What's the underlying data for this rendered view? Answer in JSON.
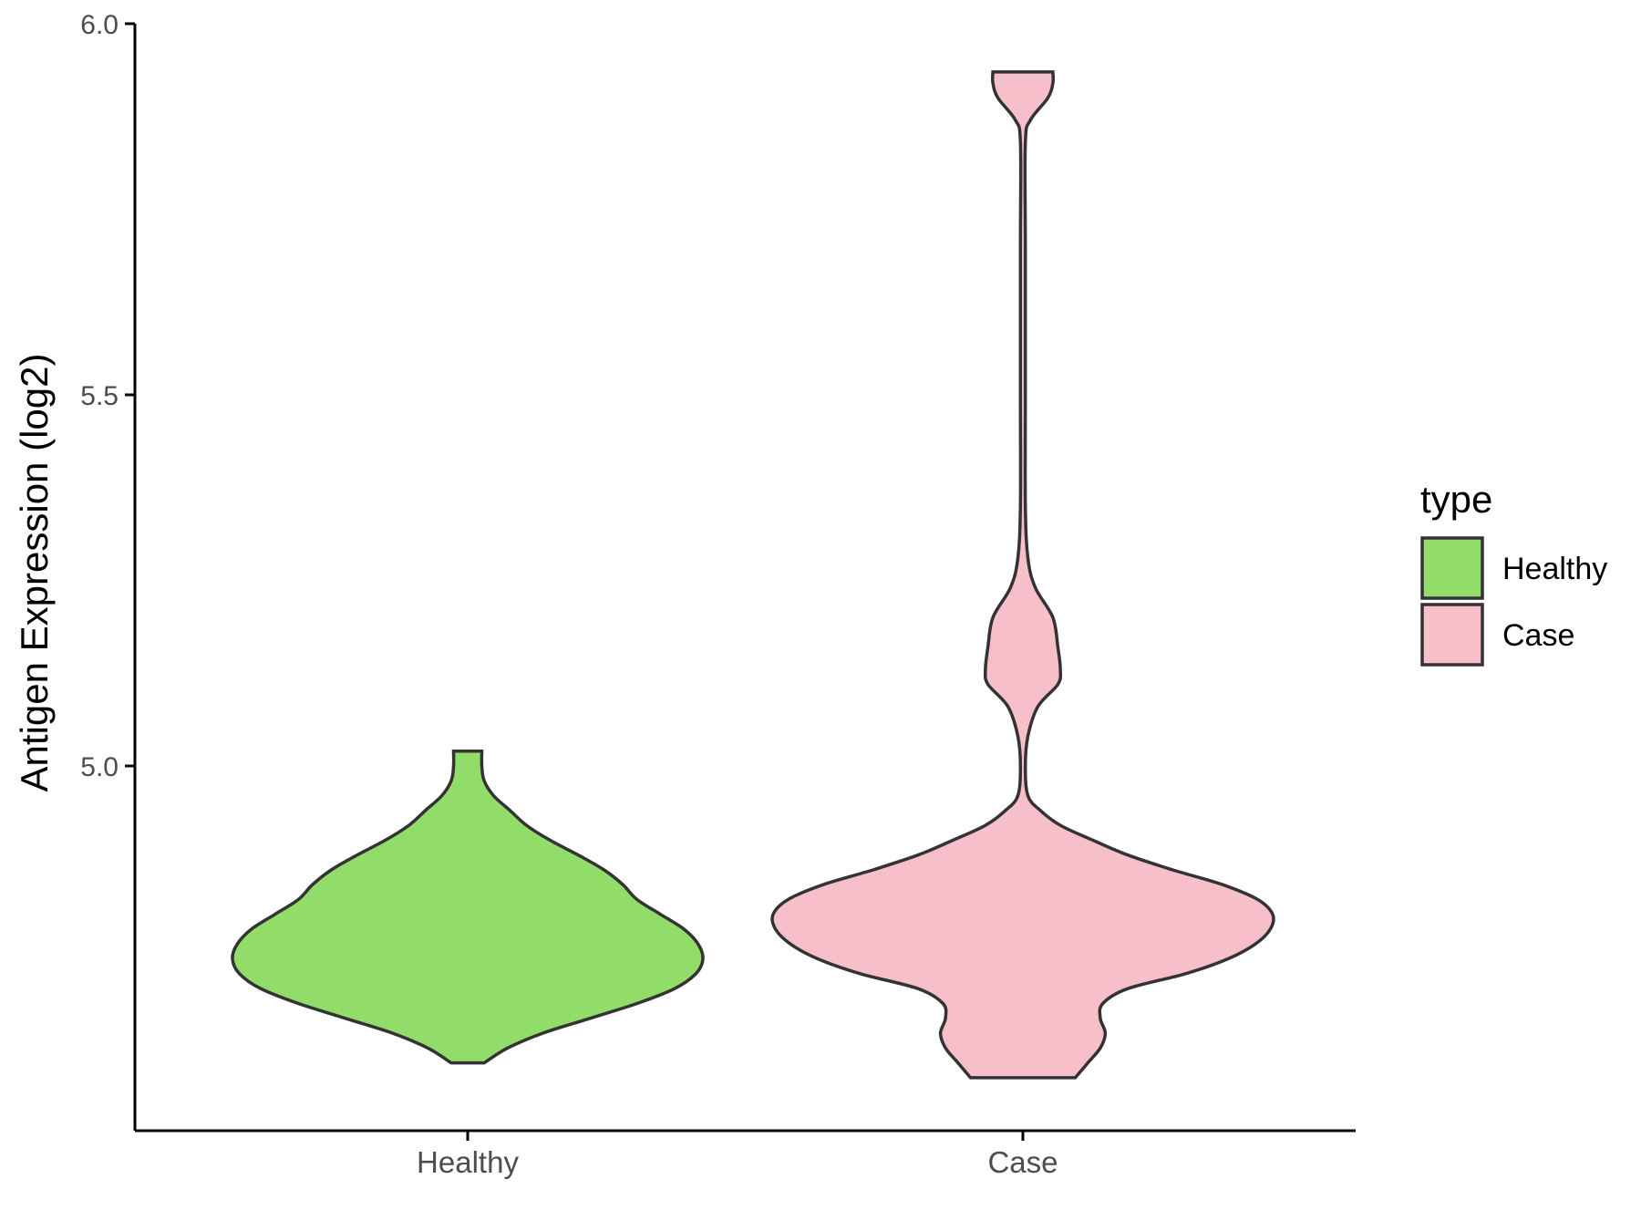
{
  "chart_data": {
    "type": "violin",
    "xlabel": "",
    "ylabel": "Antigen Expression (log2)",
    "ylim": [
      4.51,
      6.0
    ],
    "yticks": [
      5.0,
      5.5,
      6.0
    ],
    "ytick_labels": [
      "5.0",
      "5.5",
      "6.0"
    ],
    "categories": [
      "Healthy",
      "Case"
    ],
    "grid": false,
    "legend": {
      "title": "type",
      "placement": "right",
      "entries": [
        {
          "label": "Healthy",
          "color": "#92dc6a"
        },
        {
          "label": "Case",
          "color": "#f7bfca"
        }
      ]
    },
    "series": [
      {
        "name": "Healthy",
        "color": "#92dc6a",
        "profile": [
          [
            4.6,
            0.07
          ],
          [
            4.62,
            0.17
          ],
          [
            4.64,
            0.32
          ],
          [
            4.66,
            0.52
          ],
          [
            4.68,
            0.72
          ],
          [
            4.7,
            0.88
          ],
          [
            4.72,
            0.97
          ],
          [
            4.74,
            1.0
          ],
          [
            4.76,
            0.98
          ],
          [
            4.78,
            0.92
          ],
          [
            4.8,
            0.82
          ],
          [
            4.82,
            0.72
          ],
          [
            4.84,
            0.66
          ],
          [
            4.86,
            0.58
          ],
          [
            4.88,
            0.47
          ],
          [
            4.9,
            0.35
          ],
          [
            4.92,
            0.25
          ],
          [
            4.94,
            0.18
          ],
          [
            4.96,
            0.11
          ],
          [
            4.98,
            0.07
          ],
          [
            5.0,
            0.06
          ],
          [
            5.02,
            0.06
          ]
        ]
      },
      {
        "name": "Case",
        "color": "#f7bfca",
        "profile": [
          [
            4.58,
            0.21
          ],
          [
            4.6,
            0.26
          ],
          [
            4.62,
            0.31
          ],
          [
            4.64,
            0.33
          ],
          [
            4.66,
            0.31
          ],
          [
            4.68,
            0.32
          ],
          [
            4.7,
            0.42
          ],
          [
            4.72,
            0.65
          ],
          [
            4.74,
            0.82
          ],
          [
            4.76,
            0.93
          ],
          [
            4.78,
            0.99
          ],
          [
            4.8,
            1.0
          ],
          [
            4.82,
            0.94
          ],
          [
            4.84,
            0.8
          ],
          [
            4.86,
            0.6
          ],
          [
            4.88,
            0.42
          ],
          [
            4.9,
            0.28
          ],
          [
            4.92,
            0.15
          ],
          [
            4.94,
            0.07
          ],
          [
            4.96,
            0.02
          ],
          [
            5.0,
            0.01
          ],
          [
            5.04,
            0.02
          ],
          [
            5.08,
            0.06
          ],
          [
            5.11,
            0.14
          ],
          [
            5.13,
            0.15
          ],
          [
            5.16,
            0.14
          ],
          [
            5.2,
            0.12
          ],
          [
            5.24,
            0.05
          ],
          [
            5.28,
            0.02
          ],
          [
            5.35,
            0.01
          ],
          [
            5.5,
            0.01
          ],
          [
            5.7,
            0.01
          ],
          [
            5.84,
            0.01
          ],
          [
            5.87,
            0.03
          ],
          [
            5.9,
            0.1
          ],
          [
            5.92,
            0.12
          ],
          [
            5.935,
            0.12
          ]
        ]
      }
    ]
  }
}
